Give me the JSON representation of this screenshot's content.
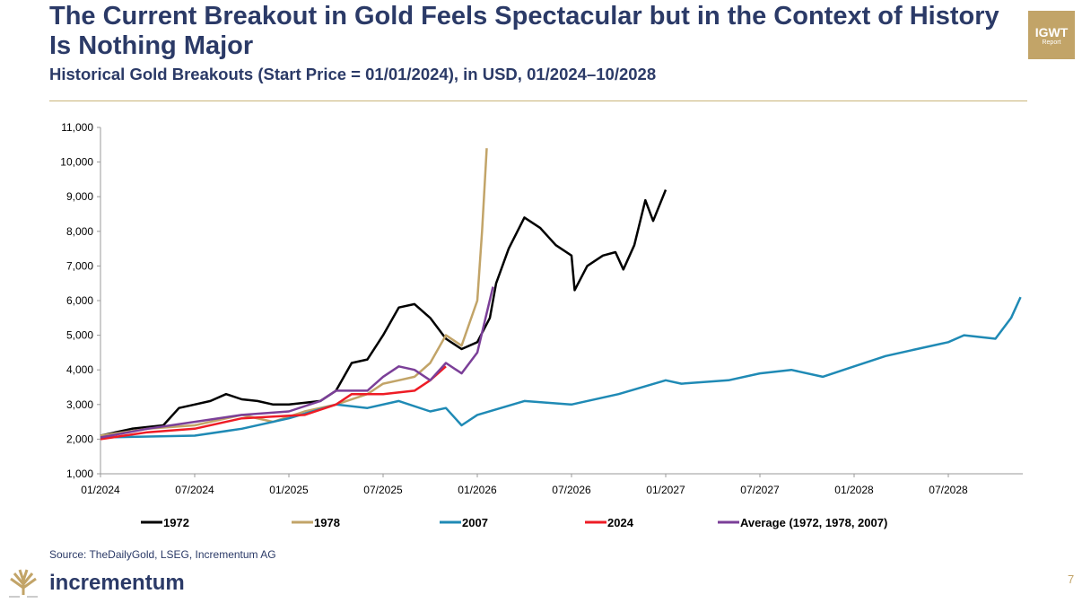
{
  "header": {
    "title": "The Current Breakout in Gold Feels Spectacular but in the Context of History Is Nothing Major",
    "subtitle": "Historical Gold Breakouts (Start Price = 01/01/2024), in USD, 01/2024–10/2028",
    "badge_top": "IGWT",
    "badge_bottom": "Report"
  },
  "footer": {
    "source": "Source: TheDailyGold, LSEG, Incrementum AG",
    "brand": "incrementum",
    "page": "7"
  },
  "chart_data": {
    "type": "line",
    "title": "Historical Gold Breakouts",
    "xlabel": "",
    "ylabel": "USD",
    "x_unit": "months since 01/2024",
    "ylim": [
      1000,
      11000
    ],
    "xlim": [
      0,
      58
    ],
    "yticks": [
      "1,000",
      "2,000",
      "3,000",
      "4,000",
      "5,000",
      "6,000",
      "7,000",
      "8,000",
      "9,000",
      "10,000",
      "11,000"
    ],
    "xticks": [
      "01/2024",
      "07/2024",
      "01/2025",
      "07/2025",
      "01/2026",
      "07/2026",
      "01/2027",
      "07/2027",
      "01/2028",
      "07/2028"
    ],
    "legend_position": "bottom",
    "series": [
      {
        "name": "1972",
        "color": "#000000",
        "x": [
          0,
          2,
          4,
          5,
          6,
          7,
          8,
          9,
          10,
          11,
          12,
          13,
          14,
          15,
          16,
          17,
          18,
          19,
          20,
          21,
          22,
          23,
          24,
          24.8,
          25.2,
          26,
          27,
          28,
          29,
          30,
          30.2,
          31,
          32,
          32.8,
          33.3,
          34,
          34.7,
          35.2,
          36
        ],
        "y": [
          2100,
          2300,
          2400,
          2900,
          3000,
          3100,
          3300,
          3150,
          3100,
          3000,
          3000,
          3050,
          3100,
          3400,
          4200,
          4300,
          5000,
          5800,
          5900,
          5500,
          4900,
          4600,
          4800,
          5500,
          6500,
          7500,
          8400,
          8100,
          7600,
          7300,
          6300,
          7000,
          7300,
          7400,
          6900,
          7600,
          8900,
          8300,
          9200
        ]
      },
      {
        "name": "1978",
        "color": "#c2a468",
        "x": [
          0,
          3,
          6,
          9,
          11,
          13,
          15,
          17,
          18,
          19,
          20,
          21,
          22,
          23,
          24,
          24.3,
          24.6
        ],
        "y": [
          2100,
          2300,
          2400,
          2700,
          2500,
          2800,
          3000,
          3300,
          3600,
          3700,
          3800,
          4200,
          5000,
          4700,
          6000,
          8000,
          10400
        ]
      },
      {
        "name": "2007",
        "color": "#1f8ab5",
        "x": [
          0,
          6,
          9,
          12,
          15,
          17,
          19,
          21,
          22,
          23,
          24,
          27,
          30,
          33,
          36,
          37,
          40,
          42,
          44,
          46,
          48,
          50,
          52,
          54,
          55,
          57,
          58,
          58.6
        ],
        "y": [
          2050,
          2100,
          2300,
          2600,
          3000,
          2900,
          3100,
          2800,
          2900,
          2400,
          2700,
          3100,
          3000,
          3300,
          3700,
          3600,
          3700,
          3900,
          4000,
          3800,
          4100,
          4400,
          4600,
          4800,
          5000,
          4900,
          5500,
          6100
        ]
      },
      {
        "name": "2024",
        "color": "#ee1c25",
        "x": [
          0,
          3,
          6,
          9,
          11,
          13,
          15,
          16,
          18,
          20,
          21,
          22
        ],
        "y": [
          2000,
          2200,
          2300,
          2600,
          2650,
          2700,
          3000,
          3300,
          3300,
          3400,
          3700,
          4100
        ]
      },
      {
        "name": "Average (1972, 1978, 2007)",
        "color": "#7b3f98",
        "x": [
          0,
          3,
          6,
          9,
          12,
          14,
          15,
          17,
          18,
          19,
          20,
          21,
          22,
          23,
          24,
          25
        ],
        "y": [
          2050,
          2300,
          2500,
          2700,
          2800,
          3100,
          3400,
          3400,
          3800,
          4100,
          4000,
          3700,
          4200,
          3900,
          4500,
          6400
        ]
      }
    ]
  }
}
